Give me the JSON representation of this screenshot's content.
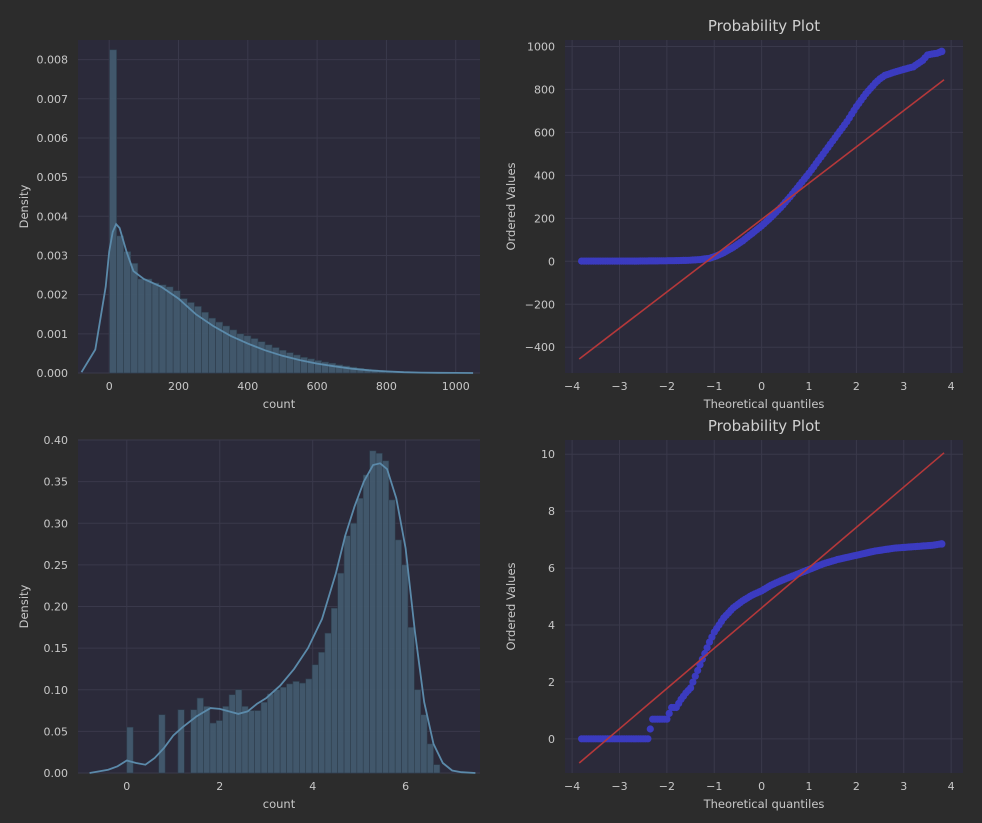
{
  "colors": {
    "figure_bg": "#2c2c2c",
    "axes_bg": "#2b2a3a",
    "grid": "#3a394b",
    "text": "#c8c8c8",
    "hist_fill": "#425a6e",
    "hist_edge": "#2e3d4c",
    "kde": "#5b8aaa",
    "qq_points": "#3b3bc0",
    "qq_line": "#b5383a"
  },
  "chart_data": [
    {
      "id": "hist_raw",
      "type": "bar",
      "subtype": "histogram_with_kde",
      "title": "",
      "xlabel": "count",
      "ylabel": "Density",
      "xlim": [
        -90,
        1070
      ],
      "ylim": [
        0,
        0.0085
      ],
      "xticks": [
        0,
        200,
        400,
        600,
        800,
        1000
      ],
      "xtick_labels": [
        "0",
        "200",
        "400",
        "600",
        "800",
        "1000"
      ],
      "yticks": [
        0,
        0.001,
        0.002,
        0.003,
        0.004,
        0.005,
        0.006,
        0.007,
        0.008
      ],
      "ytick_labels": [
        "0.000",
        "0.001",
        "0.002",
        "0.003",
        "0.004",
        "0.005",
        "0.006",
        "0.007",
        "0.008"
      ],
      "bin_start": 1,
      "bin_width": 20.4,
      "values": [
        0.00825,
        0.0035,
        0.0031,
        0.0028,
        0.0024,
        0.0024,
        0.0023,
        0.00225,
        0.0022,
        0.0021,
        0.0019,
        0.0018,
        0.0017,
        0.00155,
        0.0014,
        0.0013,
        0.0012,
        0.0011,
        0.001,
        0.00095,
        0.00088,
        0.0008,
        0.00072,
        0.00065,
        0.00058,
        0.00052,
        0.00046,
        0.0004,
        0.00036,
        0.00032,
        0.00028,
        0.00025,
        0.00021,
        0.00018,
        0.00015,
        0.00012,
        0.0001,
        8e-05,
        6e-05,
        5e-05,
        4e-05,
        3e-05,
        2e-05,
        2e-05,
        1e-05,
        1e-05,
        1e-05,
        1e-05
      ],
      "kde": {
        "x": [
          -80,
          -40,
          -10,
          0,
          10,
          20,
          30,
          50,
          70,
          100,
          150,
          200,
          250,
          300,
          350,
          400,
          450,
          500,
          550,
          600,
          650,
          700,
          750,
          800,
          850,
          900,
          950,
          1000,
          1050
        ],
        "y": [
          2e-05,
          0.0006,
          0.0022,
          0.0031,
          0.0036,
          0.0038,
          0.0037,
          0.0031,
          0.0026,
          0.0024,
          0.0022,
          0.0019,
          0.0015,
          0.0012,
          0.00095,
          0.00075,
          0.00058,
          0.00044,
          0.00033,
          0.00024,
          0.00017,
          0.00011,
          7e-05,
          4e-05,
          2e-05,
          1e-05,
          5e-06,
          2e-06,
          0.0
        ]
      }
    },
    {
      "id": "qq_raw",
      "type": "scatter",
      "subtype": "probability_plot",
      "title": "Probability Plot",
      "xlabel": "Theoretical quantiles",
      "ylabel": "Ordered Values",
      "xlim": [
        -4.15,
        4.25
      ],
      "ylim": [
        -520,
        1030
      ],
      "xticks": [
        -4,
        -3,
        -2,
        -1,
        0,
        1,
        2,
        3,
        4
      ],
      "xtick_labels": [
        "−4",
        "−3",
        "−2",
        "−1",
        "0",
        "1",
        "2",
        "3",
        "4"
      ],
      "yticks": [
        -400,
        -200,
        0,
        200,
        400,
        600,
        800,
        1000
      ],
      "ytick_labels": [
        "−400",
        "−200",
        "0",
        "200",
        "400",
        "600",
        "800",
        "1000"
      ],
      "points": {
        "x": [
          -3.8,
          -3.6,
          -3.3,
          -3.0,
          -2.6,
          -2.2,
          -1.8,
          -1.5,
          -1.3,
          -1.1,
          -0.95,
          -0.8,
          -0.6,
          -0.4,
          -0.2,
          0.0,
          0.2,
          0.4,
          0.6,
          0.8,
          1.0,
          1.2,
          1.4,
          1.6,
          1.8,
          2.0,
          2.2,
          2.4,
          2.5,
          2.6,
          2.8,
          3.0,
          3.2,
          3.4,
          3.5,
          3.6,
          3.7,
          3.8
        ],
        "y": [
          1,
          1,
          1,
          1,
          1,
          2,
          3,
          5,
          8,
          14,
          25,
          40,
          65,
          95,
          130,
          165,
          205,
          250,
          300,
          355,
          410,
          470,
          530,
          590,
          650,
          720,
          780,
          830,
          850,
          865,
          880,
          893,
          905,
          935,
          960,
          965,
          968,
          977
        ]
      },
      "fit_line": {
        "x": [
          -3.85,
          3.85
        ],
        "y": [
          -455,
          845
        ]
      }
    },
    {
      "id": "hist_log",
      "type": "bar",
      "subtype": "histogram_with_kde",
      "title": "",
      "xlabel": "count",
      "ylabel": "Density",
      "xlim": [
        -1.05,
        7.6
      ],
      "ylim": [
        0,
        0.4
      ],
      "xticks": [
        0,
        2,
        4,
        6
      ],
      "xtick_labels": [
        "0",
        "2",
        "4",
        "6"
      ],
      "yticks": [
        0,
        0.05,
        0.1,
        0.15,
        0.2,
        0.25,
        0.3,
        0.35,
        0.4
      ],
      "ytick_labels": [
        "0.00",
        "0.05",
        "0.10",
        "0.15",
        "0.20",
        "0.25",
        "0.30",
        "0.35",
        "0.40"
      ],
      "bin_start": 0,
      "bin_width": 0.1375,
      "values": [
        0.055,
        0,
        0,
        0,
        0,
        0.07,
        0,
        0,
        0.076,
        0,
        0.076,
        0.09,
        0.08,
        0.06,
        0.063,
        0.08,
        0.094,
        0.1,
        0.08,
        0.075,
        0.075,
        0.085,
        0.095,
        0.1,
        0.103,
        0.107,
        0.11,
        0.108,
        0.113,
        0.13,
        0.145,
        0.168,
        0.198,
        0.24,
        0.285,
        0.3,
        0.33,
        0.358,
        0.387,
        0.384,
        0.375,
        0.328,
        0.28,
        0.25,
        0.175,
        0.1,
        0.07,
        0.035,
        0.01
      ],
      "kde": {
        "x": [
          -0.8,
          -0.4,
          -0.2,
          0.0,
          0.2,
          0.4,
          0.6,
          0.8,
          1.0,
          1.2,
          1.5,
          1.8,
          2.0,
          2.2,
          2.4,
          2.6,
          2.8,
          3.0,
          3.3,
          3.6,
          3.9,
          4.2,
          4.5,
          4.7,
          4.9,
          5.1,
          5.3,
          5.45,
          5.6,
          5.8,
          6.0,
          6.2,
          6.4,
          6.6,
          6.8,
          7.0,
          7.2,
          7.5
        ],
        "y": [
          0.0,
          0.004,
          0.008,
          0.015,
          0.012,
          0.01,
          0.018,
          0.03,
          0.045,
          0.055,
          0.068,
          0.078,
          0.077,
          0.074,
          0.071,
          0.074,
          0.083,
          0.09,
          0.105,
          0.125,
          0.15,
          0.185,
          0.24,
          0.285,
          0.32,
          0.35,
          0.37,
          0.372,
          0.365,
          0.33,
          0.27,
          0.17,
          0.085,
          0.035,
          0.012,
          0.003,
          0.001,
          0.0
        ]
      }
    },
    {
      "id": "qq_log",
      "type": "scatter",
      "subtype": "probability_plot",
      "title": "Probability Plot",
      "xlabel": "Theoretical quantiles",
      "ylabel": "Ordered Values",
      "xlim": [
        -4.15,
        4.25
      ],
      "ylim": [
        -1.2,
        10.5
      ],
      "xticks": [
        -4,
        -3,
        -2,
        -1,
        0,
        1,
        2,
        3,
        4
      ],
      "xtick_labels": [
        "−4",
        "−3",
        "−2",
        "−1",
        "0",
        "1",
        "2",
        "3",
        "4"
      ],
      "yticks": [
        0,
        2,
        4,
        6,
        8,
        10
      ],
      "ytick_labels": [
        "0",
        "2",
        "4",
        "6",
        "8",
        "10"
      ],
      "points": {
        "x": [
          -3.8,
          -3.5,
          -3.2,
          -3.0,
          -2.8,
          -2.6,
          -2.4,
          -2.3,
          -2.2,
          -2.1,
          -2.0,
          -1.9,
          -1.8,
          -1.7,
          -1.6,
          -1.5,
          -1.4,
          -1.3,
          -1.2,
          -1.1,
          -1.0,
          -0.8,
          -0.6,
          -0.4,
          -0.2,
          0.0,
          0.2,
          0.4,
          0.7,
          1.0,
          1.3,
          1.6,
          2.0,
          2.4,
          2.8,
          3.2,
          3.6,
          3.8
        ],
        "y": [
          0.0,
          0.0,
          0.0,
          0.0,
          0.0,
          0.0,
          0.0,
          0.69,
          0.69,
          0.69,
          0.69,
          1.1,
          1.1,
          1.39,
          1.61,
          1.79,
          2.2,
          2.6,
          3.0,
          3.4,
          3.75,
          4.25,
          4.6,
          4.85,
          5.05,
          5.2,
          5.4,
          5.55,
          5.75,
          5.95,
          6.15,
          6.3,
          6.45,
          6.6,
          6.7,
          6.75,
          6.8,
          6.85
        ]
      },
      "fit_line": {
        "x": [
          -3.85,
          3.85
        ],
        "y": [
          -0.85,
          10.05
        ]
      }
    }
  ]
}
